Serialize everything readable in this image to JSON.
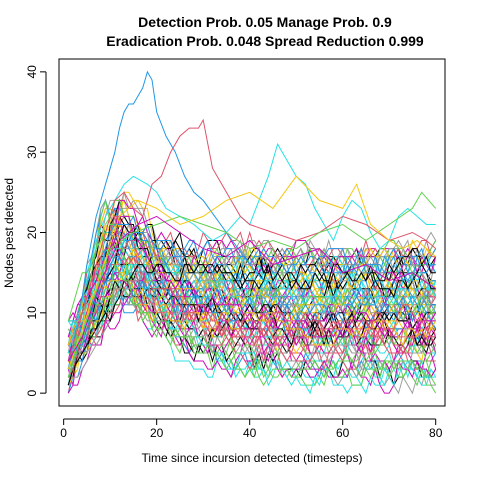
{
  "chart_data": {
    "type": "line",
    "title_line1": "Detection Prob. 0.05 Manage Prob. 0.9",
    "title_line2": "Eradication Prob. 0.048 Spread Reduction 0.999",
    "xlabel": "Time since incursion detected (timesteps)",
    "ylabel": "Nodes pest detected",
    "xlim": [
      -1,
      82
    ],
    "ylim": [
      -1.6,
      41.6
    ],
    "xticks": [
      0,
      20,
      40,
      60,
      80
    ],
    "yticks": [
      0,
      10,
      20,
      30,
      40
    ],
    "grid": false,
    "legend": "none",
    "series_count": 100,
    "line_colors": [
      "#000000",
      "#DF536B",
      "#61D04F",
      "#2297E6",
      "#28E2E5",
      "#CD0BBC",
      "#F5C710",
      "#9E9E9E"
    ],
    "highlight_series": [
      {
        "color": "#2297E6",
        "x": [
          1,
          2,
          3,
          4,
          5,
          6,
          7,
          8,
          9,
          10,
          11,
          12,
          13,
          14,
          15,
          16,
          17,
          18,
          19,
          20,
          22,
          24,
          26,
          28,
          30,
          35,
          40,
          43
        ],
        "y": [
          3,
          6,
          9,
          12,
          16,
          19,
          22,
          24,
          26,
          28,
          30,
          33,
          35,
          36,
          36,
          37,
          38,
          40,
          39,
          35,
          32,
          30,
          27,
          25,
          24,
          20,
          16,
          14
        ]
      },
      {
        "color": "#28E2E5",
        "x": [
          1,
          3,
          5,
          7,
          9,
          11,
          13,
          15,
          18,
          20,
          22,
          25,
          28,
          30,
          32,
          35,
          38,
          40,
          42,
          44,
          46,
          48,
          50,
          52,
          54,
          56,
          58,
          60,
          62,
          64,
          66,
          68,
          70,
          72,
          74,
          76,
          78,
          80
        ],
        "y": [
          5,
          9,
          14,
          19,
          22,
          24,
          26,
          27,
          26,
          25,
          23,
          22,
          21,
          20,
          19,
          20,
          22,
          21,
          24,
          27,
          31,
          29,
          27,
          26,
          23,
          21,
          19,
          22,
          24,
          23,
          20,
          18,
          19,
          22,
          23,
          22,
          21,
          21
        ]
      },
      {
        "color": "#DF536B",
        "x": [
          1,
          3,
          5,
          7,
          9,
          11,
          13,
          15,
          17,
          19,
          21,
          23,
          25,
          27,
          29,
          30,
          32,
          34,
          36,
          38,
          40,
          45,
          50,
          55,
          60,
          65,
          70,
          75,
          78,
          80
        ],
        "y": [
          4,
          8,
          12,
          16,
          20,
          24,
          25,
          23,
          22,
          26,
          27,
          30,
          32,
          33,
          33,
          34,
          28,
          26,
          24,
          22,
          21,
          20,
          19,
          20,
          22,
          21,
          19,
          20,
          19,
          18
        ]
      },
      {
        "color": "#61D04F",
        "x": [
          1,
          5,
          10,
          15,
          20,
          25,
          30,
          35,
          40,
          45,
          50,
          55,
          60,
          65,
          70,
          75,
          77,
          80
        ],
        "y": [
          2,
          9,
          18,
          20,
          21,
          22,
          21,
          20,
          18,
          19,
          18,
          20,
          21,
          19,
          21,
          23,
          25,
          23
        ]
      },
      {
        "color": "#F5C710",
        "x": [
          1,
          4,
          8,
          12,
          16,
          20,
          25,
          30,
          35,
          40,
          45,
          50,
          55,
          60,
          63,
          66,
          70,
          73,
          76,
          80
        ],
        "y": [
          3,
          8,
          15,
          22,
          24,
          23,
          21,
          22,
          24,
          25,
          23,
          27,
          24,
          23,
          26,
          21,
          19,
          18,
          19,
          17
        ]
      },
      {
        "color": "#CD0BBC",
        "x": [
          1,
          4,
          8,
          12,
          16,
          20,
          25,
          30,
          35,
          40,
          45,
          50,
          55,
          60,
          65,
          70,
          75,
          80
        ],
        "y": [
          4,
          7,
          14,
          19,
          21,
          22,
          20,
          18,
          17,
          19,
          16,
          17,
          18,
          15,
          16,
          14,
          15,
          13
        ]
      }
    ]
  }
}
